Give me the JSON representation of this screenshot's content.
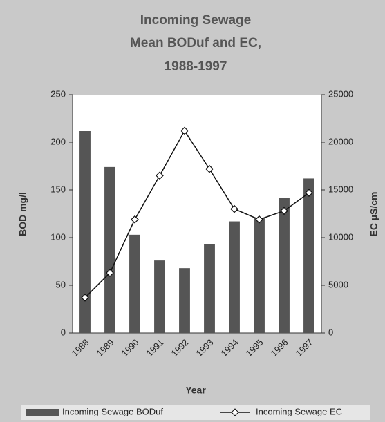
{
  "chart_data": {
    "type": "bar",
    "title": [
      "Incoming Sewage",
      "Mean BODuf and EC,",
      "1988-1997"
    ],
    "x_label": "Year",
    "y_label": "BOD mg/l",
    "y2_label": "EC µS/cm",
    "categories": [
      "1988",
      "1989",
      "1990",
      "1991",
      "1992",
      "1993",
      "1994",
      "1995",
      "1996",
      "1997"
    ],
    "series": [
      {
        "name": "Incoming Sewage BODuf",
        "type": "bar",
        "color": "#555555",
        "axis": "y",
        "values": [
          212,
          174,
          103,
          76,
          68,
          93,
          117,
          121,
          142,
          162
        ]
      },
      {
        "name": "Incoming Sewage EC",
        "type": "line",
        "color": "#111111",
        "axis": "y2",
        "values": [
          3700,
          6300,
          11900,
          16500,
          21200,
          17200,
          13000,
          11900,
          12800,
          14700
        ]
      }
    ],
    "ylim": [
      0,
      250
    ],
    "yticks": [
      0,
      50,
      100,
      150,
      200,
      250
    ],
    "y2lim": [
      0,
      25000
    ],
    "y2ticks": [
      0,
      5000,
      10000,
      15000,
      20000,
      25000
    ],
    "legend": "bottom"
  }
}
